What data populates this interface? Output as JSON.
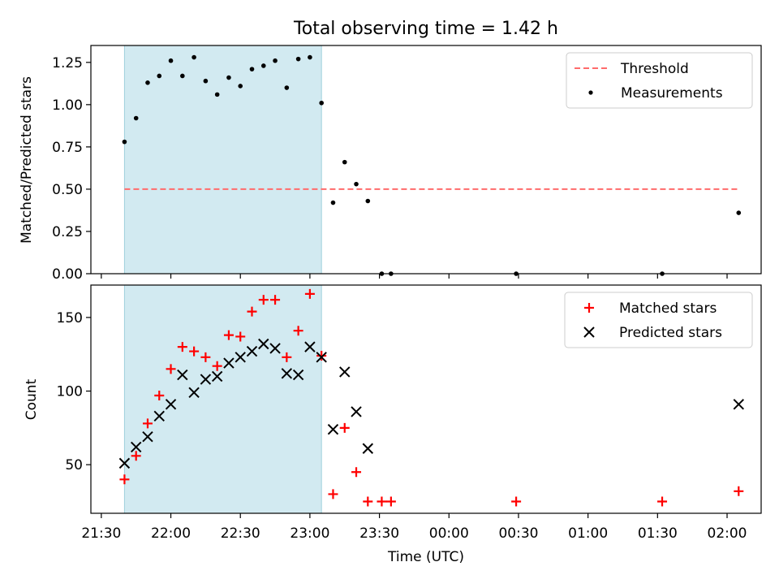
{
  "chart_data": {
    "type": "scatter",
    "title": "Total observing time = 1.42 h",
    "x_tick_labels": [
      "21:30",
      "22:00",
      "22:30",
      "23:00",
      "23:30",
      "00:00",
      "00:30",
      "01:00",
      "01:30",
      "02:00"
    ],
    "x_tick_minutes": [
      -30,
      0,
      30,
      60,
      90,
      120,
      150,
      180,
      210,
      240
    ],
    "x_range_minutes": [
      -34.5,
      254.7
    ],
    "xlabel": "Time (UTC)",
    "highlight_span": [
      "21:40",
      "23:05"
    ],
    "times": [
      "21:40",
      "21:45",
      "21:50",
      "21:55",
      "22:00",
      "22:05",
      "22:10",
      "22:15",
      "22:20",
      "22:25",
      "22:30",
      "22:35",
      "22:40",
      "22:45",
      "22:50",
      "22:55",
      "23:00",
      "23:05",
      "23:10",
      "23:15",
      "23:20",
      "23:25",
      "23:31",
      "23:35",
      "00:29",
      "01:32",
      "02:05"
    ],
    "colors": {
      "highlight": "#add8e6",
      "threshold": "#ff6b6b",
      "measurements": "#000000",
      "matched": "#ff0000",
      "predicted": "#000000"
    },
    "top": {
      "ylabel": "Matched/Predicted stars",
      "ylim": [
        0,
        1.35
      ],
      "y_ticks": [
        0,
        0.25,
        0.5,
        0.75,
        1.0,
        1.25
      ],
      "y_tick_labels": [
        "0.00",
        "0.25",
        "0.50",
        "0.75",
        "1.00",
        "1.25"
      ],
      "threshold_value": 0.5,
      "threshold_x": [
        "21:40",
        "02:05"
      ],
      "legend": {
        "threshold": "Threshold",
        "measurements": "Measurements"
      },
      "legend_position": "top-right",
      "measurements": [
        0.78,
        0.92,
        1.13,
        1.17,
        1.26,
        1.17,
        1.28,
        1.14,
        1.06,
        1.16,
        1.11,
        1.21,
        1.23,
        1.26,
        1.1,
        1.27,
        1.28,
        1.01,
        0.42,
        0.66,
        0.53,
        0.43,
        0.0,
        0.0,
        0.0,
        0.0,
        0.36
      ]
    },
    "bottom": {
      "ylabel": "Count",
      "ylim": [
        17,
        172
      ],
      "y_ticks": [
        50,
        100,
        150
      ],
      "y_tick_labels": [
        "50",
        "100",
        "150"
      ],
      "legend": {
        "matched": "Matched stars",
        "predicted": "Predicted stars"
      },
      "legend_position": "top-right",
      "matched": [
        40,
        56,
        78,
        97,
        115,
        130,
        127,
        123,
        117,
        138,
        137,
        154,
        162,
        162,
        123,
        141,
        166,
        124,
        30,
        75,
        45,
        25,
        25,
        25,
        25,
        25,
        32
      ],
      "predicted": [
        51,
        62,
        69,
        83,
        91,
        111,
        99,
        108,
        110,
        119,
        123,
        127,
        132,
        129,
        112,
        111,
        130,
        123,
        74,
        113,
        86,
        61,
        null,
        null,
        null,
        null,
        91
      ]
    }
  }
}
